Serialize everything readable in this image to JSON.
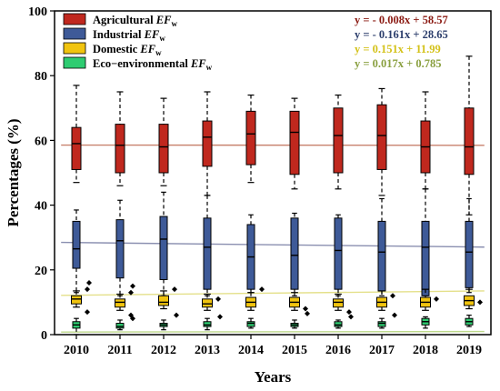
{
  "chart_data": {
    "type": "boxplot",
    "xlabel": "Years",
    "ylabel": "Percentages (%)",
    "ylim": [
      0,
      100
    ],
    "yticks": [
      0,
      20,
      40,
      60,
      80,
      100
    ],
    "categories": [
      "2010",
      "2011",
      "2012",
      "2013",
      "2014",
      "2015",
      "2016",
      "2017",
      "2018",
      "2019"
    ],
    "grid": false,
    "legend_position": "top-left",
    "series": [
      {
        "name": "Agricultural",
        "subscript_label": "EF",
        "subscript": "w",
        "color": "#c0281e",
        "trend_color": "#c8826e",
        "equation": "y = - 0.008x + 58.57",
        "equation_color": "#8b1a12",
        "trend": {
          "slope": -0.008,
          "intercept": 58.57
        },
        "boxes": [
          {
            "min": 47,
            "q1": 51,
            "median": 59,
            "q3": 64,
            "max": 77
          },
          {
            "min": 46,
            "q1": 50,
            "median": 58.5,
            "q3": 65,
            "max": 75
          },
          {
            "min": 46,
            "q1": 50,
            "median": 58,
            "q3": 65,
            "max": 73
          },
          {
            "min": 43,
            "q1": 52,
            "median": 61,
            "q3": 66,
            "max": 75
          },
          {
            "min": 47,
            "q1": 52.5,
            "median": 62,
            "q3": 69,
            "max": 74
          },
          {
            "min": 45,
            "q1": 49.5,
            "median": 62.5,
            "q3": 69,
            "max": 73
          },
          {
            "min": 45,
            "q1": 50,
            "median": 61.5,
            "q3": 70,
            "max": 74
          },
          {
            "min": 43,
            "q1": 51,
            "median": 61.5,
            "q3": 71,
            "max": 76
          },
          {
            "min": 45,
            "q1": 50,
            "median": 58,
            "q3": 66,
            "max": 75
          },
          {
            "min": 37,
            "q1": 49.5,
            "median": 58,
            "q3": 70,
            "max": 86
          }
        ]
      },
      {
        "name": "Industrial",
        "subscript_label": "EF",
        "subscript": "w",
        "color": "#3e5a98",
        "trend_color": "#8a8fb0",
        "equation": "y = - 0.161x + 28.65",
        "equation_color": "#2c3e6c",
        "trend": {
          "slope": -0.161,
          "intercept": 28.65
        },
        "boxes": [
          {
            "min": 13,
            "q1": 20.5,
            "median": 26.5,
            "q3": 35,
            "max": 38.5
          },
          {
            "min": 12,
            "q1": 17.5,
            "median": 29,
            "q3": 35.5,
            "max": 41.5
          },
          {
            "min": 12,
            "q1": 17,
            "median": 29.5,
            "q3": 36.5,
            "max": 44
          },
          {
            "min": 12,
            "q1": 14,
            "median": 27,
            "q3": 36,
            "max": 43
          },
          {
            "min": 13,
            "q1": 14,
            "median": 24,
            "q3": 34,
            "max": 37
          },
          {
            "min": 12,
            "q1": 14,
            "median": 24.5,
            "q3": 36,
            "max": 37.5
          },
          {
            "min": 12,
            "q1": 14,
            "median": 26,
            "q3": 36,
            "max": 37
          },
          {
            "min": 12,
            "q1": 13.5,
            "median": 25.5,
            "q3": 35,
            "max": 42
          },
          {
            "min": 12,
            "q1": 12,
            "median": 27,
            "q3": 35,
            "max": 45
          },
          {
            "min": 13,
            "q1": 14.5,
            "median": 25.5,
            "q3": 35,
            "max": 42
          }
        ]
      },
      {
        "name": "Domestic",
        "subscript_label": "EF",
        "subscript": "w",
        "color": "#f1c40f",
        "trend_color": "#e4e08a",
        "equation": "y = 0.151x + 11.99",
        "equation_color": "#d4c21a",
        "trend": {
          "slope": 0.151,
          "intercept": 11.99
        },
        "boxes": [
          {
            "min": 8.5,
            "q1": 9.5,
            "median": 11,
            "q3": 12,
            "max": 13.5
          },
          {
            "min": 7.5,
            "q1": 8.5,
            "median": 10,
            "q3": 11,
            "max": 12.5
          },
          {
            "min": 8,
            "q1": 9,
            "median": 10,
            "q3": 12,
            "max": 13.5
          },
          {
            "min": 7.5,
            "q1": 8.5,
            "median": 9.5,
            "q3": 11,
            "max": 12.5
          },
          {
            "min": 7.5,
            "q1": 8.5,
            "median": 10,
            "q3": 11.5,
            "max": 13
          },
          {
            "min": 7.5,
            "q1": 8.5,
            "median": 10,
            "q3": 11.5,
            "max": 13
          },
          {
            "min": 7.5,
            "q1": 8.5,
            "median": 10,
            "q3": 11,
            "max": 12.5
          },
          {
            "min": 7.5,
            "q1": 8.5,
            "median": 10,
            "q3": 11.5,
            "max": 13.5
          },
          {
            "min": 7.5,
            "q1": 8.5,
            "median": 10,
            "q3": 11.5,
            "max": 14
          },
          {
            "min": 8,
            "q1": 9,
            "median": 10.5,
            "q3": 12,
            "max": 14
          }
        ],
        "outliers": [
          [
            14,
            16,
            7
          ],
          [
            13,
            15,
            6,
            5
          ],
          [
            14,
            6
          ],
          [
            11,
            5.5
          ],
          [
            14
          ],
          [
            8,
            6.5
          ],
          [
            7,
            5.5
          ],
          [
            12,
            6
          ],
          [
            11
          ],
          [
            10
          ]
        ]
      },
      {
        "name": "Eco−environmental",
        "subscript_label": "EF",
        "subscript": "w",
        "color": "#2ecc71",
        "trend_color": "#bcd88a",
        "equation": "y = 0.017x + 0.785",
        "equation_color": "#8aa040",
        "trend": {
          "slope": 0.017,
          "intercept": 0.785
        },
        "boxes": [
          {
            "min": 0,
            "q1": 2,
            "median": 3,
            "q3": 4,
            "max": 5
          },
          {
            "min": 1.5,
            "q1": 2,
            "median": 2.5,
            "q3": 3.5,
            "max": 4.5
          },
          {
            "min": 1.5,
            "q1": 2.5,
            "median": 3,
            "q3": 3.5,
            "max": 4.5
          },
          {
            "min": 1.5,
            "q1": 2.5,
            "median": 3,
            "q3": 4,
            "max": 5
          },
          {
            "min": 2,
            "q1": 2.5,
            "median": 3.5,
            "q3": 4,
            "max": 5
          },
          {
            "min": 2,
            "q1": 2.5,
            "median": 3,
            "q3": 3.5,
            "max": 4.5
          },
          {
            "min": 2,
            "q1": 2.5,
            "median": 3,
            "q3": 4,
            "max": 4.5
          },
          {
            "min": 2,
            "q1": 2.5,
            "median": 3.5,
            "q3": 4,
            "max": 5
          },
          {
            "min": 2,
            "q1": 3,
            "median": 4,
            "q3": 5,
            "max": 5.5
          },
          {
            "min": 2.5,
            "q1": 3,
            "median": 4,
            "q3": 5,
            "max": 6
          }
        ]
      }
    ]
  }
}
